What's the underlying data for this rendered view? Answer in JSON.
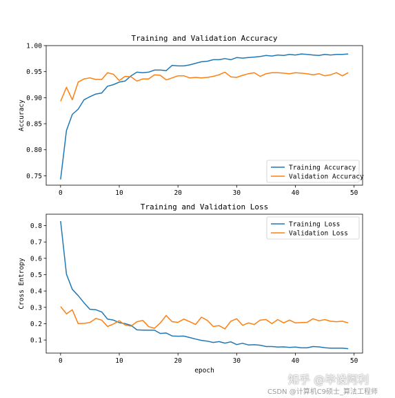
{
  "chart_data": [
    {
      "type": "line",
      "title": "Training and Validation Accuracy",
      "xlabel": "",
      "ylabel": "Accuracy",
      "xlim": [
        -2.45,
        51.45
      ],
      "ylim": [
        0.732,
        1.0
      ],
      "xticks": [
        0,
        10,
        20,
        30,
        40,
        50
      ],
      "yticks": [
        0.75,
        0.8,
        0.85,
        0.9,
        0.95,
        1.0
      ],
      "ytick_labels": [
        "0.75",
        "0.80",
        "0.85",
        "0.90",
        "0.95",
        "1.00"
      ],
      "legend": "lower-right",
      "grid": false,
      "x": [
        0,
        1,
        2,
        3,
        4,
        5,
        6,
        7,
        8,
        9,
        10,
        11,
        12,
        13,
        14,
        15,
        16,
        17,
        18,
        19,
        20,
        21,
        22,
        23,
        24,
        25,
        26,
        27,
        28,
        29,
        30,
        31,
        32,
        33,
        34,
        35,
        36,
        37,
        38,
        39,
        40,
        41,
        42,
        43,
        44,
        45,
        46,
        47,
        48,
        49
      ],
      "series": [
        {
          "name": "Training Accuracy",
          "color": "#1f77b4",
          "values": [
            0.743,
            0.837,
            0.868,
            0.878,
            0.896,
            0.902,
            0.907,
            0.909,
            0.922,
            0.925,
            0.93,
            0.932,
            0.942,
            0.949,
            0.948,
            0.949,
            0.953,
            0.953,
            0.952,
            0.962,
            0.961,
            0.961,
            0.963,
            0.966,
            0.969,
            0.97,
            0.973,
            0.973,
            0.975,
            0.973,
            0.977,
            0.976,
            0.977,
            0.978,
            0.979,
            0.981,
            0.98,
            0.982,
            0.981,
            0.983,
            0.982,
            0.984,
            0.983,
            0.982,
            0.981,
            0.983,
            0.982,
            0.983,
            0.983,
            0.984
          ]
        },
        {
          "name": "Validation Accuracy",
          "color": "#ff7f0e",
          "values": [
            0.893,
            0.92,
            0.896,
            0.93,
            0.936,
            0.938,
            0.935,
            0.935,
            0.948,
            0.945,
            0.933,
            0.941,
            0.94,
            0.932,
            0.936,
            0.936,
            0.944,
            0.943,
            0.934,
            0.938,
            0.942,
            0.942,
            0.938,
            0.939,
            0.938,
            0.939,
            0.941,
            0.944,
            0.949,
            0.94,
            0.939,
            0.943,
            0.946,
            0.948,
            0.941,
            0.946,
            0.948,
            0.948,
            0.947,
            0.946,
            0.948,
            0.947,
            0.946,
            0.944,
            0.946,
            0.942,
            0.944,
            0.948,
            0.942,
            0.948
          ]
        }
      ]
    },
    {
      "type": "line",
      "title": "Training and Validation Loss",
      "xlabel": "epoch",
      "ylabel": "Cross Entropy",
      "xlim": [
        -2.45,
        51.45
      ],
      "ylim": [
        0.02,
        0.87
      ],
      "xticks": [
        0,
        10,
        20,
        30,
        40,
        50
      ],
      "yticks": [
        0.1,
        0.2,
        0.3,
        0.4,
        0.5,
        0.6,
        0.7,
        0.8
      ],
      "ytick_labels": [
        "0.1",
        "0.2",
        "0.3",
        "0.4",
        "0.5",
        "0.6",
        "0.7",
        "0.8"
      ],
      "legend": "upper-right",
      "grid": false,
      "x": [
        0,
        1,
        2,
        3,
        4,
        5,
        6,
        7,
        8,
        9,
        10,
        11,
        12,
        13,
        14,
        15,
        16,
        17,
        18,
        19,
        20,
        21,
        22,
        23,
        24,
        25,
        26,
        27,
        28,
        29,
        30,
        31,
        32,
        33,
        34,
        35,
        36,
        37,
        38,
        39,
        40,
        41,
        42,
        43,
        44,
        45,
        46,
        47,
        48,
        49
      ],
      "series": [
        {
          "name": "Training Loss",
          "color": "#1f77b4",
          "values": [
            0.828,
            0.503,
            0.41,
            0.372,
            0.328,
            0.288,
            0.285,
            0.272,
            0.228,
            0.222,
            0.206,
            0.2,
            0.19,
            0.162,
            0.161,
            0.16,
            0.16,
            0.14,
            0.143,
            0.125,
            0.123,
            0.124,
            0.115,
            0.106,
            0.098,
            0.093,
            0.085,
            0.09,
            0.081,
            0.089,
            0.072,
            0.08,
            0.07,
            0.071,
            0.068,
            0.06,
            0.06,
            0.057,
            0.058,
            0.055,
            0.057,
            0.052,
            0.052,
            0.06,
            0.058,
            0.053,
            0.05,
            0.05,
            0.05,
            0.047
          ]
        },
        {
          "name": "Validation Loss",
          "color": "#ff7f0e",
          "values": [
            0.305,
            0.26,
            0.285,
            0.2,
            0.202,
            0.207,
            0.232,
            0.222,
            0.183,
            0.198,
            0.218,
            0.192,
            0.185,
            0.212,
            0.22,
            0.182,
            0.172,
            0.205,
            0.25,
            0.212,
            0.208,
            0.228,
            0.212,
            0.195,
            0.24,
            0.22,
            0.183,
            0.188,
            0.168,
            0.215,
            0.23,
            0.19,
            0.205,
            0.195,
            0.222,
            0.225,
            0.2,
            0.225,
            0.205,
            0.222,
            0.205,
            0.207,
            0.208,
            0.23,
            0.218,
            0.225,
            0.215,
            0.212,
            0.215,
            0.205
          ]
        }
      ]
    }
  ],
  "watermark": {
    "line1": "知乎 @毕设阿利",
    "line2": "CSDN @计算机C9硕士_算法工程师"
  }
}
